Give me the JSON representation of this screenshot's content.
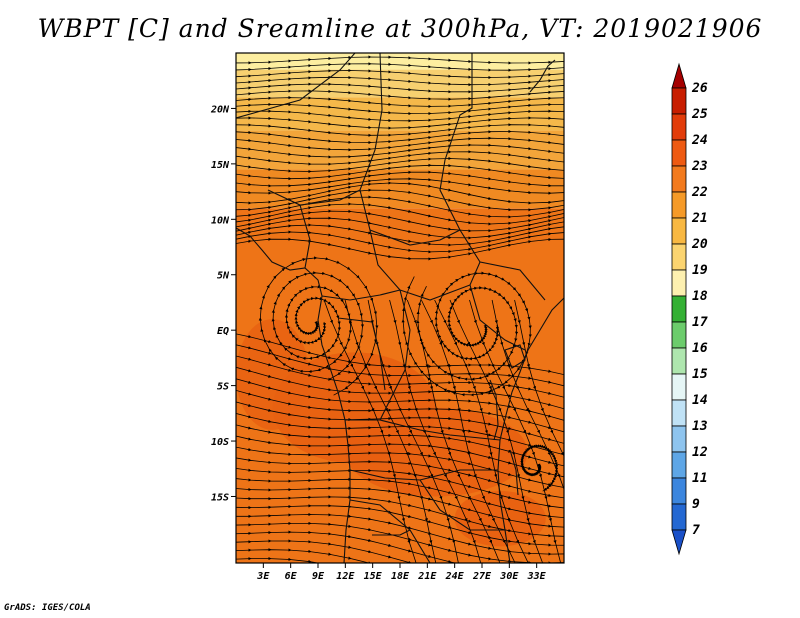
{
  "title": "WBPT [C] and Sreamline at 300hPa, VT: 2019021906",
  "credit": "GrADS: IGES/COLA",
  "map": {
    "lon_range": [
      0,
      36
    ],
    "lat_range": [
      -21,
      25
    ],
    "lon_ticks": [
      {
        "v": 3,
        "label": "3E"
      },
      {
        "v": 6,
        "label": "6E"
      },
      {
        "v": 9,
        "label": "9E"
      },
      {
        "v": 12,
        "label": "12E"
      },
      {
        "v": 15,
        "label": "15E"
      },
      {
        "v": 18,
        "label": "18E"
      },
      {
        "v": 21,
        "label": "21E"
      },
      {
        "v": 24,
        "label": "24E"
      },
      {
        "v": 27,
        "label": "27E"
      },
      {
        "v": 30,
        "label": "30E"
      },
      {
        "v": 33,
        "label": "33E"
      }
    ],
    "lat_ticks": [
      {
        "v": 20,
        "label": "20N"
      },
      {
        "v": 15,
        "label": "15N"
      },
      {
        "v": 10,
        "label": "10N"
      },
      {
        "v": 5,
        "label": "5N"
      },
      {
        "v": 0,
        "label": "EQ"
      },
      {
        "v": -5,
        "label": "5S"
      },
      {
        "v": -10,
        "label": "10S"
      },
      {
        "v": -15,
        "label": "15S"
      }
    ],
    "field_bands": [
      {
        "lat_from": 25,
        "lat_to": 23.5,
        "color": "#fdeea0"
      },
      {
        "lat_from": 23.5,
        "lat_to": 21,
        "color": "#f7d070"
      },
      {
        "lat_from": 21,
        "lat_to": 18,
        "color": "#f5b84a"
      },
      {
        "lat_from": 18,
        "lat_to": 14.5,
        "color": "#f3a53a"
      },
      {
        "lat_from": 14.5,
        "lat_to": 11,
        "color": "#f08a22"
      },
      {
        "lat_from": 11,
        "lat_to": -21,
        "color": "#ee7417"
      }
    ],
    "field_patches": [
      {
        "lon": 13,
        "lat": -7,
        "rx": 9,
        "ry": 5,
        "color": "#e85f10"
      },
      {
        "lon": 22,
        "lat": -11,
        "rx": 10,
        "ry": 4,
        "color": "#e85f10"
      },
      {
        "lon": 4,
        "lat": -4,
        "rx": 4,
        "ry": 5,
        "color": "#e86212"
      },
      {
        "lon": 29,
        "lat": -17,
        "rx": 5,
        "ry": 2.5,
        "color": "#e85f10"
      }
    ]
  },
  "colorbar": {
    "levels": [
      "26",
      "25",
      "24",
      "23",
      "22",
      "21",
      "20",
      "19",
      "18",
      "17",
      "16",
      "15",
      "14",
      "13",
      "12",
      "11",
      "9",
      "7"
    ],
    "colors": [
      "#a50000",
      "#c81e00",
      "#e23c0a",
      "#ee5a12",
      "#f27a1e",
      "#f59a28",
      "#f8b842",
      "#fbd470",
      "#fdf0b0",
      "#34b034",
      "#6ccc6c",
      "#aee6ae",
      "#e6f6f6",
      "#c0e2f6",
      "#8ec4ee",
      "#5ea6e6",
      "#3c86de",
      "#2468d2",
      "#1a50c8"
    ]
  }
}
